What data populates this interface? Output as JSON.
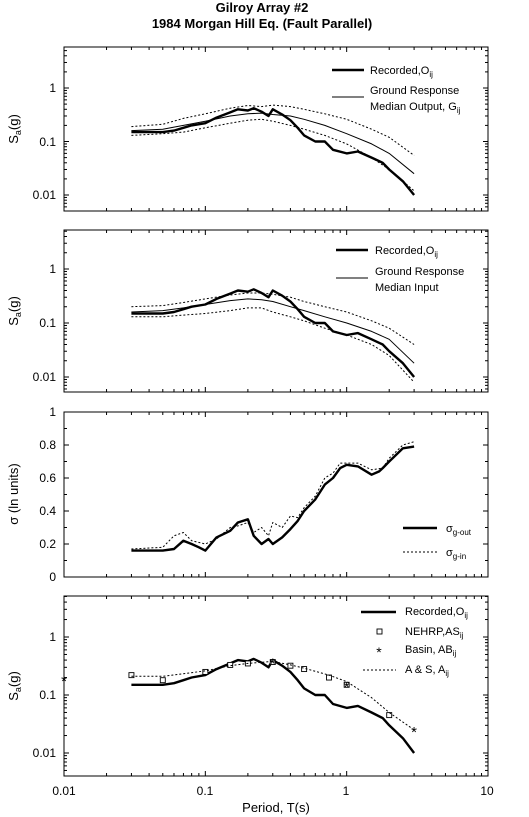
{
  "header": {
    "title_line1": "Gilroy Array #2",
    "title_line2": "1984 Morgan Hill Eq. (Fault Parallel)"
  },
  "x_axis": {
    "label": "Period, T(s)",
    "ticks": [
      0.01,
      0.1,
      1,
      10
    ],
    "tick_labels": [
      "0.01",
      "0.1",
      "1",
      "10"
    ],
    "range": [
      0.01,
      10
    ],
    "scale": "log"
  },
  "chart_data": [
    {
      "type": "line",
      "panel": 1,
      "ylabel": "Sa(g)",
      "yscale": "log",
      "ylim": [
        0.005,
        5
      ],
      "y_tick_labels": [
        "1",
        "0.1",
        "0.01"
      ],
      "legend_position": "top-right",
      "legend": [
        "Recorded,Oij",
        "Ground Response Median Output, Gij"
      ],
      "series": [
        {
          "name": "Recorded,Oij",
          "style": "thick",
          "x": [
            0.03,
            0.04,
            0.05,
            0.06,
            0.07,
            0.08,
            0.1,
            0.12,
            0.15,
            0.17,
            0.2,
            0.22,
            0.25,
            0.28,
            0.3,
            0.35,
            0.4,
            0.45,
            0.5,
            0.6,
            0.7,
            0.8,
            1.0,
            1.2,
            1.5,
            1.8,
            2.0,
            2.5,
            3.0
          ],
          "y": [
            0.15,
            0.15,
            0.15,
            0.16,
            0.18,
            0.2,
            0.22,
            0.28,
            0.35,
            0.4,
            0.38,
            0.42,
            0.36,
            0.3,
            0.4,
            0.32,
            0.25,
            0.18,
            0.13,
            0.1,
            0.1,
            0.07,
            0.06,
            0.065,
            0.05,
            0.04,
            0.03,
            0.018,
            0.01
          ]
        },
        {
          "name": "Ground Response Median Output, Gij",
          "style": "thin",
          "x": [
            0.03,
            0.05,
            0.07,
            0.1,
            0.15,
            0.2,
            0.25,
            0.3,
            0.4,
            0.5,
            0.7,
            1.0,
            1.5,
            2.0,
            3.0
          ],
          "y": [
            0.16,
            0.17,
            0.2,
            0.24,
            0.3,
            0.33,
            0.34,
            0.32,
            0.3,
            0.26,
            0.2,
            0.14,
            0.09,
            0.06,
            0.025
          ]
        },
        {
          "name": "",
          "style": "dotted",
          "x": [
            0.03,
            0.05,
            0.07,
            0.1,
            0.15,
            0.2,
            0.25,
            0.3,
            0.4,
            0.5,
            0.7,
            1.0,
            1.5,
            2.0,
            3.0
          ],
          "y": [
            0.19,
            0.21,
            0.27,
            0.33,
            0.42,
            0.47,
            0.45,
            0.48,
            0.45,
            0.4,
            0.33,
            0.26,
            0.17,
            0.12,
            0.055
          ]
        },
        {
          "name": "",
          "style": "dotted",
          "x": [
            0.03,
            0.05,
            0.07,
            0.1,
            0.15,
            0.2,
            0.25,
            0.3,
            0.4,
            0.5,
            0.7,
            1.0,
            1.5,
            2.0,
            3.0
          ],
          "y": [
            0.13,
            0.14,
            0.15,
            0.18,
            0.22,
            0.25,
            0.26,
            0.24,
            0.2,
            0.17,
            0.13,
            0.09,
            0.05,
            0.03,
            0.012
          ]
        }
      ]
    },
    {
      "type": "line",
      "panel": 2,
      "ylabel": "Sa(g)",
      "yscale": "log",
      "ylim": [
        0.005,
        5
      ],
      "y_tick_labels": [
        "1",
        "0.1",
        "0.01"
      ],
      "legend_position": "top-right",
      "legend": [
        "Recorded,Oij",
        "Ground Response Median Input"
      ],
      "series": [
        {
          "name": "Recorded,Oij",
          "style": "thick",
          "x": [
            0.03,
            0.04,
            0.05,
            0.06,
            0.07,
            0.08,
            0.1,
            0.12,
            0.15,
            0.17,
            0.2,
            0.22,
            0.25,
            0.28,
            0.3,
            0.35,
            0.4,
            0.45,
            0.5,
            0.6,
            0.7,
            0.8,
            1.0,
            1.2,
            1.5,
            1.8,
            2.0,
            2.5,
            3.0
          ],
          "y": [
            0.15,
            0.15,
            0.15,
            0.16,
            0.18,
            0.2,
            0.22,
            0.28,
            0.35,
            0.4,
            0.38,
            0.42,
            0.36,
            0.3,
            0.4,
            0.32,
            0.25,
            0.18,
            0.13,
            0.1,
            0.1,
            0.07,
            0.06,
            0.065,
            0.05,
            0.04,
            0.03,
            0.018,
            0.01
          ]
        },
        {
          "name": "Ground Response Median Input",
          "style": "thin",
          "x": [
            0.03,
            0.05,
            0.07,
            0.1,
            0.15,
            0.2,
            0.25,
            0.3,
            0.4,
            0.5,
            0.7,
            1.0,
            1.5,
            2.0,
            3.0
          ],
          "y": [
            0.16,
            0.17,
            0.19,
            0.22,
            0.26,
            0.28,
            0.27,
            0.25,
            0.2,
            0.17,
            0.13,
            0.1,
            0.07,
            0.05,
            0.018
          ]
        },
        {
          "name": "",
          "style": "dotted",
          "x": [
            0.03,
            0.05,
            0.07,
            0.1,
            0.15,
            0.2,
            0.25,
            0.3,
            0.4,
            0.5,
            0.7,
            1.0,
            1.5,
            2.0,
            3.0
          ],
          "y": [
            0.2,
            0.21,
            0.24,
            0.28,
            0.33,
            0.36,
            0.36,
            0.34,
            0.3,
            0.25,
            0.2,
            0.16,
            0.11,
            0.08,
            0.04
          ]
        },
        {
          "name": "",
          "style": "dotted",
          "x": [
            0.03,
            0.05,
            0.07,
            0.1,
            0.15,
            0.2,
            0.25,
            0.3,
            0.4,
            0.5,
            0.7,
            1.0,
            1.5,
            2.0,
            3.0
          ],
          "y": [
            0.13,
            0.13,
            0.14,
            0.15,
            0.17,
            0.19,
            0.19,
            0.16,
            0.13,
            0.11,
            0.08,
            0.06,
            0.04,
            0.025,
            0.008
          ]
        }
      ]
    },
    {
      "type": "line",
      "panel": 3,
      "ylabel": "σ (ln units)",
      "yscale": "linear",
      "ylim": [
        0,
        1
      ],
      "y_tick_labels": [
        "1",
        "0.8",
        "0.6",
        "0.4",
        "0.2",
        "0"
      ],
      "legend_position": "bottom-right",
      "legend": [
        "σg-out",
        "σg-in"
      ],
      "series": [
        {
          "name": "σg-out",
          "style": "thick",
          "x": [
            0.03,
            0.05,
            0.06,
            0.07,
            0.08,
            0.09,
            0.1,
            0.12,
            0.15,
            0.17,
            0.2,
            0.22,
            0.25,
            0.28,
            0.3,
            0.35,
            0.4,
            0.45,
            0.5,
            0.6,
            0.7,
            0.8,
            0.9,
            1.0,
            1.2,
            1.5,
            1.7,
            1.8,
            2.0,
            2.5,
            3.0
          ],
          "y": [
            0.16,
            0.16,
            0.17,
            0.22,
            0.2,
            0.18,
            0.16,
            0.24,
            0.28,
            0.33,
            0.35,
            0.25,
            0.2,
            0.23,
            0.2,
            0.24,
            0.29,
            0.34,
            0.4,
            0.47,
            0.56,
            0.6,
            0.66,
            0.68,
            0.67,
            0.62,
            0.64,
            0.66,
            0.7,
            0.78,
            0.79
          ]
        },
        {
          "name": "σg-in",
          "style": "dotted",
          "x": [
            0.03,
            0.05,
            0.06,
            0.07,
            0.08,
            0.1,
            0.12,
            0.15,
            0.17,
            0.2,
            0.22,
            0.25,
            0.28,
            0.3,
            0.35,
            0.4,
            0.45,
            0.5,
            0.6,
            0.7,
            0.8,
            0.9,
            1.0,
            1.2,
            1.5,
            1.8,
            2.0,
            2.5,
            3.0
          ],
          "y": [
            0.17,
            0.18,
            0.25,
            0.27,
            0.22,
            0.2,
            0.23,
            0.3,
            0.31,
            0.33,
            0.27,
            0.3,
            0.25,
            0.33,
            0.3,
            0.37,
            0.36,
            0.42,
            0.49,
            0.6,
            0.63,
            0.69,
            0.69,
            0.69,
            0.65,
            0.66,
            0.72,
            0.8,
            0.82
          ]
        }
      ]
    },
    {
      "type": "line",
      "panel": 4,
      "ylabel": "Sa(g)",
      "xlabel": "Period, T(s)",
      "yscale": "log",
      "ylim": [
        0.005,
        5
      ],
      "y_tick_labels": [
        "1",
        "0.1",
        "0.01"
      ],
      "legend_position": "top-right",
      "legend": [
        "Recorded,Oij",
        "NEHRP,ASij",
        "Basin, ABij",
        "A & S, Aij"
      ],
      "series": [
        {
          "name": "Recorded,Oij",
          "style": "thick",
          "x": [
            0.03,
            0.04,
            0.05,
            0.06,
            0.07,
            0.08,
            0.1,
            0.12,
            0.15,
            0.17,
            0.2,
            0.22,
            0.25,
            0.28,
            0.3,
            0.35,
            0.4,
            0.45,
            0.5,
            0.6,
            0.7,
            0.8,
            1.0,
            1.2,
            1.5,
            1.8,
            2.0,
            2.5,
            3.0
          ],
          "y": [
            0.15,
            0.15,
            0.15,
            0.16,
            0.18,
            0.2,
            0.22,
            0.28,
            0.35,
            0.4,
            0.38,
            0.42,
            0.36,
            0.3,
            0.4,
            0.32,
            0.25,
            0.18,
            0.13,
            0.1,
            0.1,
            0.07,
            0.06,
            0.065,
            0.05,
            0.04,
            0.03,
            0.018,
            0.01
          ]
        },
        {
          "name": "NEHRP,ASij",
          "style": "open-square",
          "x": [
            0.03,
            0.05,
            0.1,
            0.15,
            0.2,
            0.3,
            0.4,
            0.5,
            0.75,
            1.0,
            2.0
          ],
          "y": [
            0.22,
            0.18,
            0.25,
            0.33,
            0.35,
            0.37,
            0.32,
            0.28,
            0.2,
            0.15,
            0.045
          ]
        },
        {
          "name": "Basin, ABij",
          "style": "asterisk",
          "x": [
            0.01,
            0.3,
            1.0,
            3.0
          ],
          "y": [
            0.19,
            0.38,
            0.15,
            0.025
          ]
        },
        {
          "name": "A & S, Aij",
          "style": "dotted",
          "x": [
            0.03,
            0.05,
            0.1,
            0.15,
            0.2,
            0.3,
            0.4,
            0.5,
            0.75,
            1.0,
            1.5,
            2.0,
            3.0
          ],
          "y": [
            0.21,
            0.21,
            0.26,
            0.32,
            0.35,
            0.38,
            0.33,
            0.29,
            0.22,
            0.17,
            0.09,
            0.05,
            0.025
          ]
        }
      ]
    }
  ]
}
